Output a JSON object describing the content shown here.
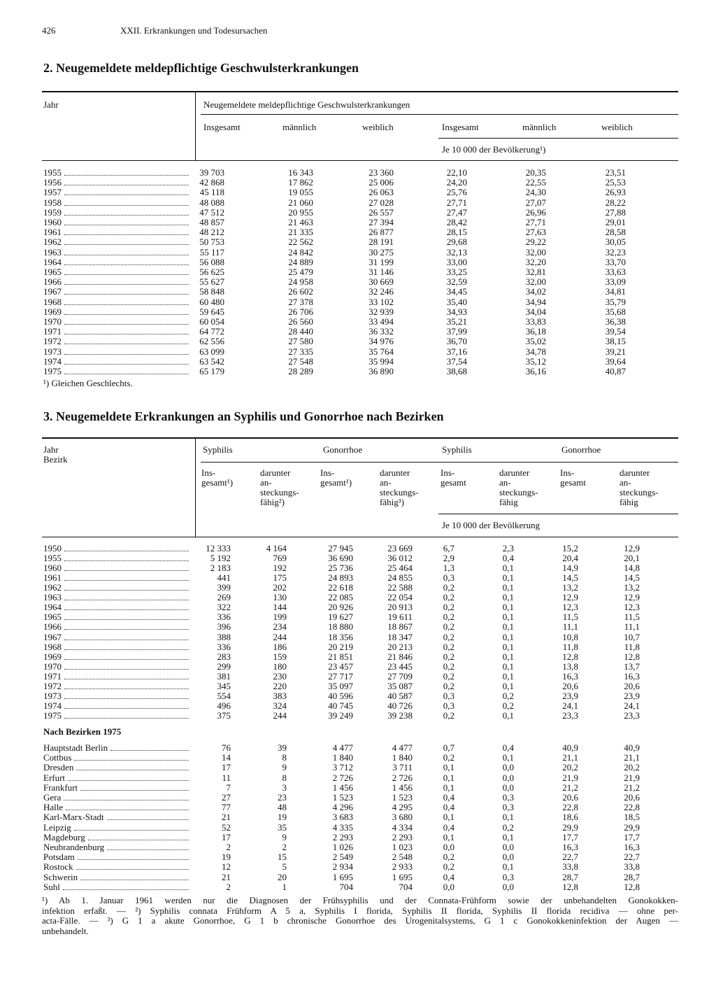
{
  "header": {
    "page": "426",
    "section": "XXII. Erkrankungen und Todesursachen"
  },
  "table1": {
    "title": "2. Neugemeldete meldepflichtige Geschwulsterkrankungen",
    "stub_header": "Jahr",
    "group_header": "Neugemeldete meldepflichtige Geschwulsterkrankungen",
    "columns": [
      "Insgesamt",
      "männlich",
      "weiblich",
      "Insgesamt",
      "männlich",
      "weiblich"
    ],
    "rate_header": "Je 10 000 der Bevölkerung¹)",
    "rows": [
      [
        "1955",
        "39 703",
        "16 343",
        "23 360",
        "22,10",
        "20,35",
        "23,51"
      ],
      [
        "1956",
        "42 868",
        "17 862",
        "25 006",
        "24,20",
        "22,55",
        "25,53"
      ],
      [
        "1957",
        "45 118",
        "19 055",
        "26 063",
        "25,76",
        "24,30",
        "26,93"
      ],
      [
        "1958",
        "48 088",
        "21 060",
        "27 028",
        "27,71",
        "27,07",
        "28,22"
      ],
      [
        "1959",
        "47 512",
        "20 955",
        "26 557",
        "27,47",
        "26,96",
        "27,88"
      ],
      [
        "1960",
        "48 857",
        "21 463",
        "27 394",
        "28,42",
        "27,71",
        "29,01"
      ],
      [
        "1961",
        "48 212",
        "21 335",
        "26 877",
        "28,15",
        "27,63",
        "28,58"
      ],
      [
        "1962",
        "50 753",
        "22 562",
        "28 191",
        "29,68",
        "29,22",
        "30,05"
      ],
      [
        "1963",
        "55 117",
        "24 842",
        "30 275",
        "32,13",
        "32,00",
        "32,23"
      ],
      [
        "1964",
        "56 088",
        "24 889",
        "31 199",
        "33,00",
        "32,20",
        "33,70"
      ],
      [
        "1965",
        "56 625",
        "25 479",
        "31 146",
        "33,25",
        "32,81",
        "33,63"
      ],
      [
        "1966",
        "55 627",
        "24 958",
        "30 669",
        "32,59",
        "32,00",
        "33,09"
      ],
      [
        "1967",
        "58 848",
        "26 602",
        "32 246",
        "34,45",
        "34,02",
        "34,81"
      ],
      [
        "1968",
        "60 480",
        "27 378",
        "33 102",
        "35,40",
        "34,94",
        "35,79"
      ],
      [
        "1969",
        "59 645",
        "26 706",
        "32 939",
        "34,93",
        "34,04",
        "35,68"
      ],
      [
        "1970",
        "60 054",
        "26 560",
        "33 494",
        "35,21",
        "33,83",
        "36,38"
      ],
      [
        "1971",
        "64 772",
        "28 440",
        "36 332",
        "37,99",
        "36,18",
        "39,54"
      ],
      [
        "1972",
        "62 556",
        "27 580",
        "34 976",
        "36,70",
        "35,02",
        "38,15"
      ],
      [
        "1973",
        "63 099",
        "27 335",
        "35 764",
        "37,16",
        "34,78",
        "39,21"
      ],
      [
        "1974",
        "63 542",
        "27 548",
        "35 994",
        "37,54",
        "35,12",
        "39,64"
      ],
      [
        "1975",
        "65 179",
        "28 289",
        "36 890",
        "38,68",
        "36,16",
        "40,87"
      ]
    ],
    "footnote": "¹) Gleichen Geschlechts."
  },
  "table2": {
    "title": "3. Neugemeldete Erkrankungen an Syphilis und Gonorrhoe nach Bezirken",
    "stub_header": [
      "Jahr",
      "Bezirk"
    ],
    "groups": [
      "Syphilis",
      "Gonorrhoe",
      "Syphilis",
      "Gonorrhoe"
    ],
    "columns": [
      [
        "Ins-",
        "gesamt¹)"
      ],
      [
        "darunter",
        "an-",
        "steckungs-",
        "fähig²)"
      ],
      [
        "Ins-",
        "gesamt¹)"
      ],
      [
        "darunter",
        "an-",
        "steckungs-",
        "fähig³)"
      ],
      [
        "Ins-",
        "gesamt"
      ],
      [
        "darunter",
        "an-",
        "steckungs-",
        "fähig"
      ],
      [
        "Ins-",
        "gesamt"
      ],
      [
        "darunter",
        "an-",
        "steckungs-",
        "fähig"
      ]
    ],
    "rate_header": "Je 10 000 der Bevölkerung",
    "rows": [
      [
        "1950",
        "12 333",
        "4 164",
        "27 945",
        "23 669",
        "6,7",
        "2,3",
        "15,2",
        "12,9"
      ],
      [
        "1955",
        "5 192",
        "769",
        "36 690",
        "36 012",
        "2,9",
        "0,4",
        "20,4",
        "20,1"
      ],
      [
        "1960",
        "2 183",
        "192",
        "25 736",
        "25 464",
        "1,3",
        "0,1",
        "14,9",
        "14,8"
      ],
      [
        "1961",
        "441",
        "175",
        "24 893",
        "24 855",
        "0,3",
        "0,1",
        "14,5",
        "14,5"
      ],
      [
        "1962",
        "399",
        "202",
        "22 618",
        "22 588",
        "0,2",
        "0,1",
        "13,2",
        "13,2"
      ],
      [
        "1963",
        "269",
        "130",
        "22 085",
        "22 054",
        "0,2",
        "0,1",
        "12,9",
        "12,9"
      ],
      [
        "1964",
        "322",
        "144",
        "20 926",
        "20 913",
        "0,2",
        "0,1",
        "12,3",
        "12,3"
      ],
      [
        "1965",
        "336",
        "199",
        "19 627",
        "19 611",
        "0,2",
        "0,1",
        "11,5",
        "11,5"
      ],
      [
        "1966",
        "396",
        "234",
        "18 880",
        "18 867",
        "0,2",
        "0,1",
        "11,1",
        "11,1"
      ],
      [
        "1967",
        "388",
        "244",
        "18 356",
        "18 347",
        "0,2",
        "0,1",
        "10,8",
        "10,7"
      ],
      [
        "1968",
        "336",
        "186",
        "20 219",
        "20 213",
        "0,2",
        "0,1",
        "11,8",
        "11,8"
      ],
      [
        "1969",
        "283",
        "159",
        "21 851",
        "21 846",
        "0,2",
        "0,1",
        "12,8",
        "12,8"
      ],
      [
        "1970",
        "299",
        "180",
        "23 457",
        "23 445",
        "0,2",
        "0,1",
        "13,8",
        "13,7"
      ],
      [
        "1971",
        "381",
        "230",
        "27 717",
        "27 709",
        "0,2",
        "0,1",
        "16,3",
        "16,3"
      ],
      [
        "1972",
        "345",
        "220",
        "35 097",
        "35 087",
        "0,2",
        "0,1",
        "20,6",
        "20,6"
      ],
      [
        "1973",
        "554",
        "383",
        "40 596",
        "40 587",
        "0,3",
        "0,2",
        "23,9",
        "23,9"
      ],
      [
        "1974",
        "496",
        "324",
        "40 745",
        "40 726",
        "0,3",
        "0,2",
        "24,1",
        "24,1"
      ],
      [
        "1975",
        "375",
        "244",
        "39 249",
        "39 238",
        "0,2",
        "0,1",
        "23,3",
        "23,3"
      ]
    ],
    "district_heading": "Nach Bezirken 1975",
    "district_rows": [
      [
        "Hauptstadt Berlin",
        "76",
        "39",
        "4 477",
        "4 477",
        "0,7",
        "0,4",
        "40,9",
        "40,9"
      ],
      [
        "Cottbus",
        "14",
        "8",
        "1 840",
        "1 840",
        "0,2",
        "0,1",
        "21,1",
        "21,1"
      ],
      [
        "Dresden",
        "17",
        "9",
        "3 712",
        "3 711",
        "0,1",
        "0,0",
        "20,2",
        "20,2"
      ],
      [
        "Erfurt",
        "11",
        "8",
        "2 726",
        "2 726",
        "0,1",
        "0,0",
        "21,9",
        "21,9"
      ],
      [
        "Frankfurt",
        "7",
        "3",
        "1 456",
        "1 456",
        "0,1",
        "0,0",
        "21,2",
        "21,2"
      ],
      [
        "Gera",
        "27",
        "23",
        "1 523",
        "1 523",
        "0,4",
        "0,3",
        "20,6",
        "20,6"
      ],
      [
        "Halle",
        "77",
        "48",
        "4 296",
        "4 295",
        "0,4",
        "0,3",
        "22,8",
        "22,8"
      ],
      [
        "Karl-Marx-Stadt",
        "21",
        "19",
        "3 683",
        "3 680",
        "0,1",
        "0,1",
        "18,6",
        "18,5"
      ],
      [
        "Leipzig",
        "52",
        "35",
        "4 335",
        "4 334",
        "0,4",
        "0,2",
        "29,9",
        "29,9"
      ],
      [
        "Magdeburg",
        "17",
        "9",
        "2 293",
        "2 293",
        "0,1",
        "0,1",
        "17,7",
        "17,7"
      ],
      [
        "Neubrandenburg",
        "2",
        "2",
        "1 026",
        "1 023",
        "0,0",
        "0,0",
        "16,3",
        "16,3"
      ],
      [
        "Potsdam",
        "19",
        "15",
        "2 549",
        "2 548",
        "0,2",
        "0,0",
        "22,7",
        "22,7"
      ],
      [
        "Rostock",
        "12",
        "5",
        "2 934",
        "2 933",
        "0,2",
        "0,1",
        "33,8",
        "33,8"
      ],
      [
        "Schwerin",
        "21",
        "20",
        "1 695",
        "1 695",
        "0,4",
        "0,3",
        "28,7",
        "28,7"
      ],
      [
        "Suhl",
        "2",
        "1",
        "704",
        "704",
        "0,0",
        "0,0",
        "12,8",
        "12,8"
      ]
    ],
    "footnote": [
      "¹) Ab 1. Januar 1961 werden nur die Diagnosen der Frühsyphilis und der Connata-Frühform sowie der unbehandelten Gonokokken-",
      "infektion erfaßt. — ²) Syphilis connata Frühform A 5 a, Syphilis I florida, Syphilis II florida, Syphilis II florida recidiva — ohne per-",
      "acta-Fälle. — ³) G 1 a akute Gonorrhoe, G 1 b chronische Gonorrhoe des Urogenitalsystems, G 1 c Gonokokkeninfektion der Augen —",
      "unbehandelt."
    ]
  }
}
